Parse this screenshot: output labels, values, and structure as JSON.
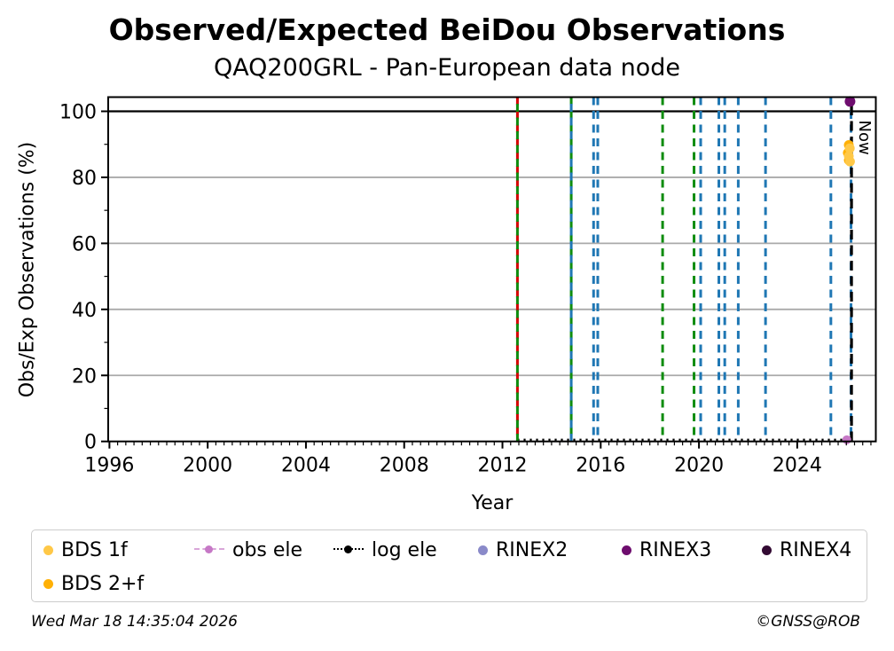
{
  "title": "Observed/Expected BeiDou Observations",
  "subtitle": "QAQ200GRL - Pan-European data node",
  "footer": {
    "timestamp": "Wed Mar 18 14:35:04 2026",
    "copyright": "©GNSS@ROB"
  },
  "chart_data": {
    "type": "scatter",
    "title": "Observed/Expected BeiDou Observations",
    "subtitle": "QAQ200GRL - Pan-European data node",
    "xlabel": "Year",
    "ylabel": "Obs/Exp Observations (%)",
    "xlim": [
      1995.95,
      2027.2
    ],
    "ylim": [
      0,
      104.3
    ],
    "x_major_ticks": [
      1996,
      2000,
      2004,
      2008,
      2012,
      2016,
      2020,
      2024
    ],
    "x_minor_tick_step_years": 0.3333,
    "y_major_ticks": [
      0,
      20,
      40,
      60,
      80,
      100
    ],
    "y_minor_ticks": [
      10,
      30,
      50,
      70,
      90
    ],
    "grid": "horizontal-major-gray",
    "grid_color": "#aaaaaa",
    "reference_line_100": {
      "y": 100,
      "color": "#000000"
    },
    "now_line": {
      "x": 2026.21,
      "label": "Now",
      "color": "#000000",
      "style": "dashed"
    },
    "event_lines": [
      {
        "x": 2012.61,
        "color": "#d40000",
        "style": "dashed"
      },
      {
        "x": 2012.61,
        "color": "#0e8c0e",
        "style": "dashed"
      },
      {
        "x": 2014.8,
        "color": "#0e8c0e",
        "style": "dashed"
      },
      {
        "x": 2014.8,
        "color": "#1f77b4",
        "style": "dashed"
      },
      {
        "x": 2015.71,
        "color": "#1f77b4",
        "style": "dashed"
      },
      {
        "x": 2015.88,
        "color": "#1f77b4",
        "style": "dashed"
      },
      {
        "x": 2018.52,
        "color": "#0e8c0e",
        "style": "dashed"
      },
      {
        "x": 2019.8,
        "color": "#0e8c0e",
        "style": "dashed"
      },
      {
        "x": 2020.07,
        "color": "#1f77b4",
        "style": "dashed"
      },
      {
        "x": 2020.81,
        "color": "#1f77b4",
        "style": "dashed"
      },
      {
        "x": 2021.05,
        "color": "#1f77b4",
        "style": "dashed"
      },
      {
        "x": 2021.6,
        "color": "#1f77b4",
        "style": "dashed"
      },
      {
        "x": 2022.71,
        "color": "#1f77b4",
        "style": "dashed"
      },
      {
        "x": 2025.37,
        "color": "#1f77b4",
        "style": "dashed"
      },
      {
        "x": 2026.19,
        "color": "#1f77b4",
        "style": "dashed"
      }
    ],
    "log_ele_line": {
      "y": 0.5,
      "x_start": 2012.61,
      "x_end": 2026.21,
      "style": "dotted",
      "color": "#000000"
    },
    "series": [
      {
        "name": "obs ele",
        "color": "#c678c6",
        "marker_radius": 5,
        "points": [
          [
            2026.02,
            0.5
          ]
        ]
      },
      {
        "name": "BDS 2+f",
        "color": "#ffb005",
        "marker_radius": 5.5,
        "points": [
          [
            2026.1,
            89.8
          ],
          [
            2026.06,
            87.4
          ],
          [
            2026.1,
            85.2
          ]
        ]
      },
      {
        "name": "BDS 1f",
        "color": "#ffc847",
        "marker_radius": 5.5,
        "points": [
          [
            2026.14,
            88.8
          ],
          [
            2026.1,
            86.4
          ],
          [
            2026.15,
            84.8
          ]
        ]
      },
      {
        "name": "RINEX2",
        "color": "#8a8ac9",
        "marker_radius": 5.5,
        "points": []
      },
      {
        "name": "RINEX3",
        "color": "#6e0d6e",
        "marker_radius": 6,
        "points": [
          [
            2026.15,
            103.0
          ]
        ]
      },
      {
        "name": "RINEX4",
        "color": "#330a33",
        "marker_radius": 5.5,
        "points": []
      }
    ]
  },
  "legend": {
    "items": [
      {
        "label": "BDS 1f",
        "marker": "dot",
        "color": "#ffc847",
        "row": 0,
        "col": 0
      },
      {
        "label": "BDS 2+f",
        "marker": "dot",
        "color": "#ffb005",
        "row": 1,
        "col": 0
      },
      {
        "label": "obs ele",
        "marker": "dash-dot",
        "color": "#c678c6",
        "line_color": "#d9a6d9",
        "row": 0,
        "col": 1
      },
      {
        "label": "log ele",
        "marker": "dotted-dot",
        "color": "#000000",
        "line_color": "#000000",
        "row": 0,
        "col": 2
      },
      {
        "label": "RINEX2",
        "marker": "dot",
        "color": "#8a8ac9",
        "row": 0,
        "col": 3
      },
      {
        "label": "RINEX3",
        "marker": "dot",
        "color": "#6e0d6e",
        "row": 0,
        "col": 4
      },
      {
        "label": "RINEX4",
        "marker": "dot",
        "color": "#330a33",
        "row": 0,
        "col": 5
      }
    ]
  }
}
